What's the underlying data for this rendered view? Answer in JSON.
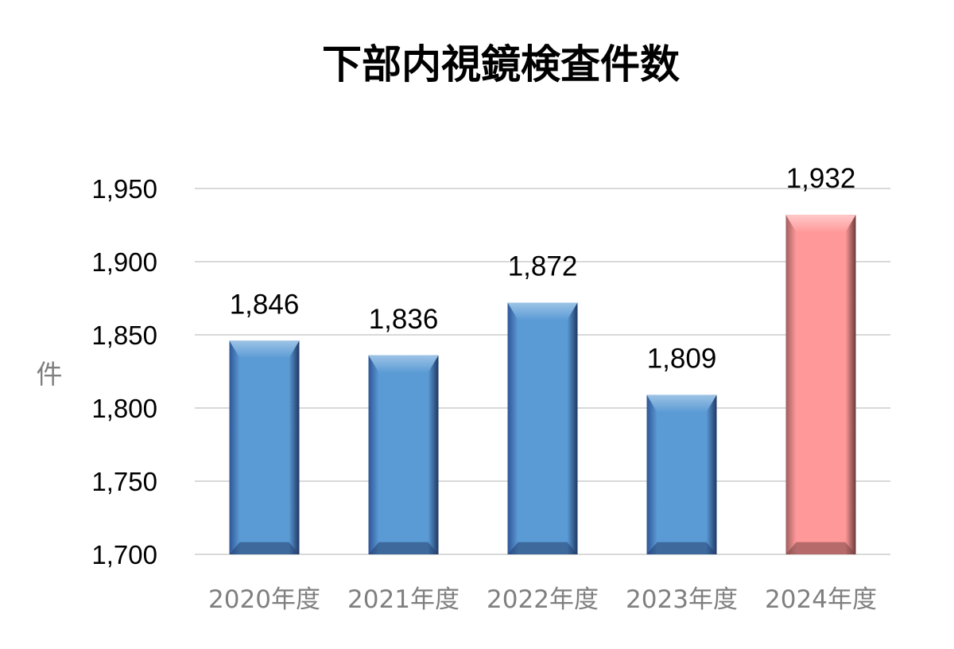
{
  "chart_data": {
    "type": "bar",
    "title": "下部内視鏡検査件数",
    "ylabel": "件",
    "xlabel": "",
    "categories": [
      "2020年度",
      "2021年度",
      "2022年度",
      "2023年度",
      "2024年度"
    ],
    "values": [
      1846,
      1836,
      1872,
      1809,
      1932
    ],
    "data_labels": [
      "1,846",
      "1,836",
      "1,872",
      "1,809",
      "1,932"
    ],
    "ylim": [
      1700,
      1950
    ],
    "yticks": [
      1700,
      1750,
      1800,
      1850,
      1900,
      1950
    ],
    "ytick_labels": [
      "1,700",
      "1,750",
      "1,800",
      "1,850",
      "1,900",
      "1,950"
    ],
    "grid": true,
    "legend": "none",
    "colors": {
      "default_bar": "#5b9bd5",
      "highlight_bar": "#ff9999",
      "highlight_index": 4,
      "gridline": "#d9d9d9"
    }
  }
}
